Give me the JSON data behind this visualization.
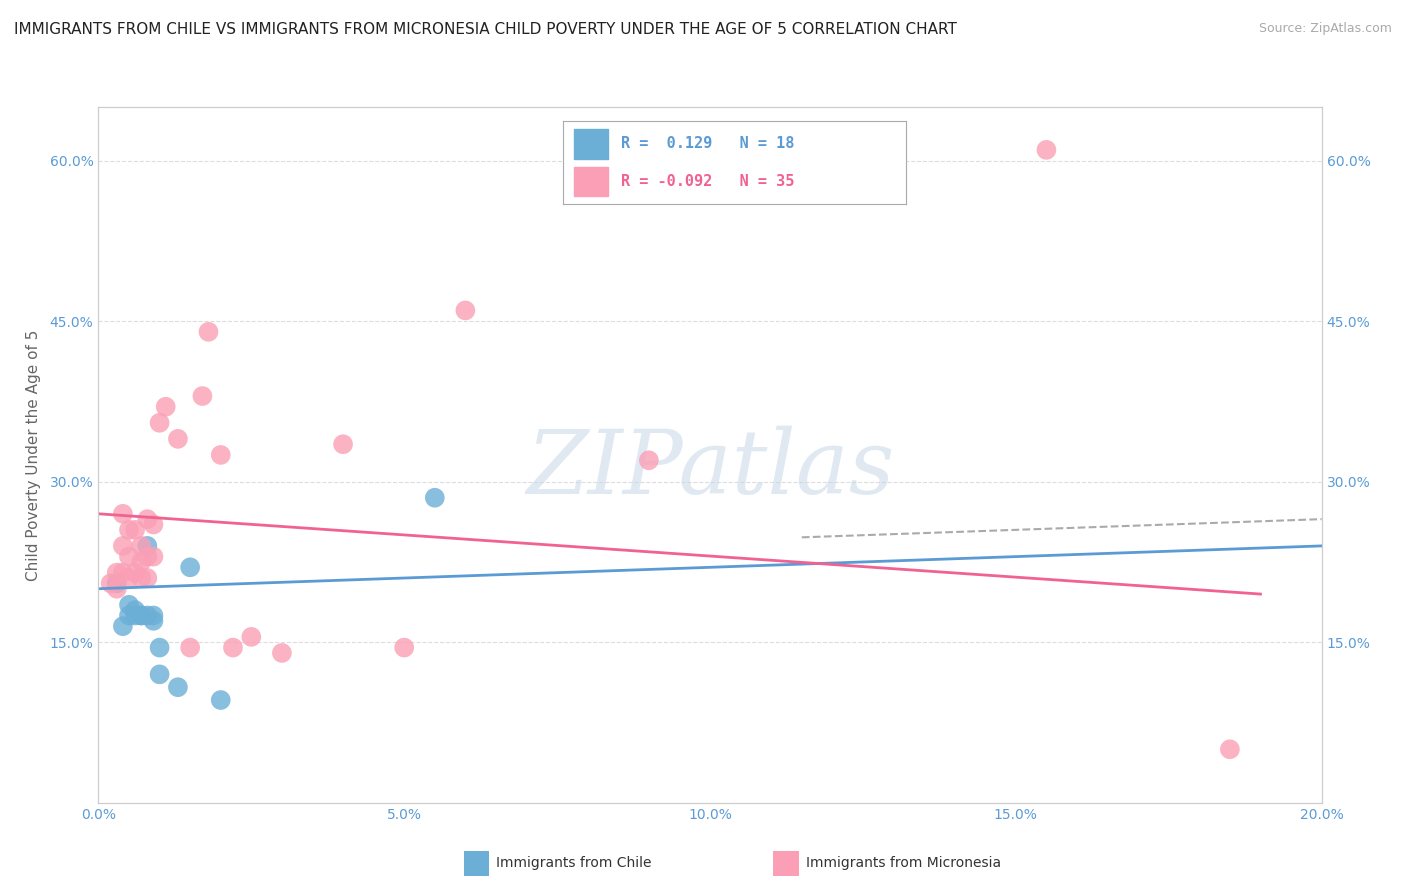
{
  "title": "IMMIGRANTS FROM CHILE VS IMMIGRANTS FROM MICRONESIA CHILD POVERTY UNDER THE AGE OF 5 CORRELATION CHART",
  "source": "Source: ZipAtlas.com",
  "ylabel": "Child Poverty Under the Age of 5",
  "xlim": [
    0.0,
    0.2
  ],
  "ylim": [
    0.0,
    0.65
  ],
  "yticks": [
    0.15,
    0.3,
    0.45,
    0.6
  ],
  "ytick_labels": [
    "15.0%",
    "30.0%",
    "45.0%",
    "60.0%"
  ],
  "xticks": [
    0.0,
    0.05,
    0.1,
    0.15,
    0.2
  ],
  "xtick_labels": [
    "0.0%",
    "5.0%",
    "10.0%",
    "15.0%",
    "20.0%"
  ],
  "chile_color": "#6baed6",
  "micronesia_color": "#fa9fb5",
  "chile_R": 0.129,
  "chile_N": 18,
  "micronesia_R": -0.092,
  "micronesia_N": 35,
  "chile_points_x": [
    0.003,
    0.004,
    0.005,
    0.005,
    0.006,
    0.006,
    0.007,
    0.007,
    0.008,
    0.008,
    0.009,
    0.009,
    0.01,
    0.01,
    0.013,
    0.015,
    0.02,
    0.055
  ],
  "chile_points_y": [
    0.205,
    0.165,
    0.175,
    0.185,
    0.175,
    0.18,
    0.175,
    0.175,
    0.175,
    0.24,
    0.17,
    0.175,
    0.12,
    0.145,
    0.108,
    0.22,
    0.096,
    0.285
  ],
  "micronesia_points_x": [
    0.002,
    0.003,
    0.003,
    0.004,
    0.004,
    0.004,
    0.005,
    0.005,
    0.005,
    0.006,
    0.006,
    0.007,
    0.007,
    0.007,
    0.008,
    0.008,
    0.008,
    0.009,
    0.009,
    0.01,
    0.011,
    0.013,
    0.015,
    0.017,
    0.018,
    0.02,
    0.022,
    0.025,
    0.03,
    0.04,
    0.05,
    0.06,
    0.09,
    0.155,
    0.185
  ],
  "micronesia_points_y": [
    0.205,
    0.2,
    0.215,
    0.215,
    0.24,
    0.27,
    0.21,
    0.23,
    0.255,
    0.215,
    0.255,
    0.21,
    0.225,
    0.24,
    0.21,
    0.23,
    0.265,
    0.23,
    0.26,
    0.355,
    0.37,
    0.34,
    0.145,
    0.38,
    0.44,
    0.325,
    0.145,
    0.155,
    0.14,
    0.335,
    0.145,
    0.46,
    0.32,
    0.61,
    0.05
  ],
  "chile_trend": [
    0.0,
    0.2,
    0.2,
    0.24
  ],
  "micronesia_trend": [
    0.0,
    0.19,
    0.27,
    0.195
  ],
  "dashed_trend": [
    0.115,
    0.2,
    0.248,
    0.265
  ],
  "watermark_text": "ZIPatlas",
  "background_color": "#ffffff",
  "grid_color": "#dddddd",
  "tick_color": "#5b9bd5",
  "title_fontsize": 11,
  "axis_label_fontsize": 11,
  "tick_fontsize": 10
}
